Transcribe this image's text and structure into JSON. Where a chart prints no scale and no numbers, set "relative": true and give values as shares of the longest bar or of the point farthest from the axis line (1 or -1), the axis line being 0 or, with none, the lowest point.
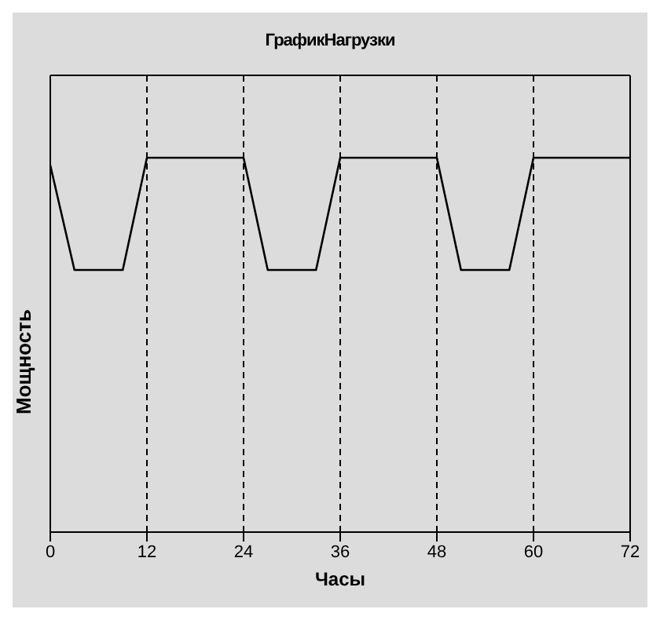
{
  "chart_data": {
    "type": "line",
    "title": "ГрафикНагрузки",
    "xlabel": "Часы",
    "ylabel": "Мощность",
    "relative": true,
    "x": [
      0,
      3,
      9,
      12,
      24,
      27,
      33,
      36,
      48,
      51,
      57,
      60,
      72
    ],
    "series": [
      {
        "color": "#000000",
        "values": [
          0.98,
          0.7,
          0.7,
          1,
          1,
          0.7,
          0.7,
          1,
          1,
          0.7,
          0.7,
          1,
          1
        ]
      }
    ],
    "xlim": [
      0,
      72
    ],
    "xticks": [
      0,
      12,
      24,
      36,
      48,
      60,
      72
    ],
    "grid": "x",
    "marker": "none",
    "line_style": "solid"
  }
}
